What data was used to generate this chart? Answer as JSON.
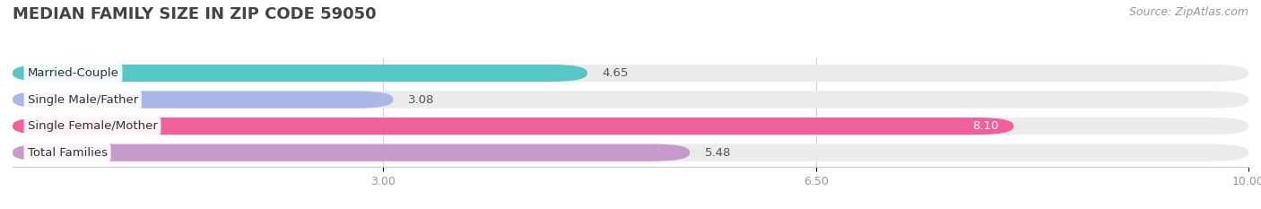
{
  "title": "MEDIAN FAMILY SIZE IN ZIP CODE 59050",
  "source": "Source: ZipAtlas.com",
  "categories": [
    "Married-Couple",
    "Single Male/Father",
    "Single Female/Mother",
    "Total Families"
  ],
  "values": [
    4.65,
    3.08,
    8.1,
    5.48
  ],
  "bar_colors": [
    "#56c6c6",
    "#aab8e8",
    "#f0609a",
    "#c89aca"
  ],
  "value_text_colors": [
    "#555555",
    "#555555",
    "#ffffff",
    "#555555"
  ],
  "xlim_min": 0.0,
  "xlim_max": 10.0,
  "xaxis_min": 3.0,
  "xaxis_max": 10.0,
  "xticks": [
    3.0,
    6.5,
    10.0
  ],
  "xtick_labels": [
    "3.00",
    "6.50",
    "10.00"
  ],
  "background_color": "#ffffff",
  "bar_bg_color": "#ebebeb",
  "bar_height": 0.65,
  "title_fontsize": 13,
  "label_fontsize": 9.5,
  "value_fontsize": 9.5,
  "source_fontsize": 9
}
